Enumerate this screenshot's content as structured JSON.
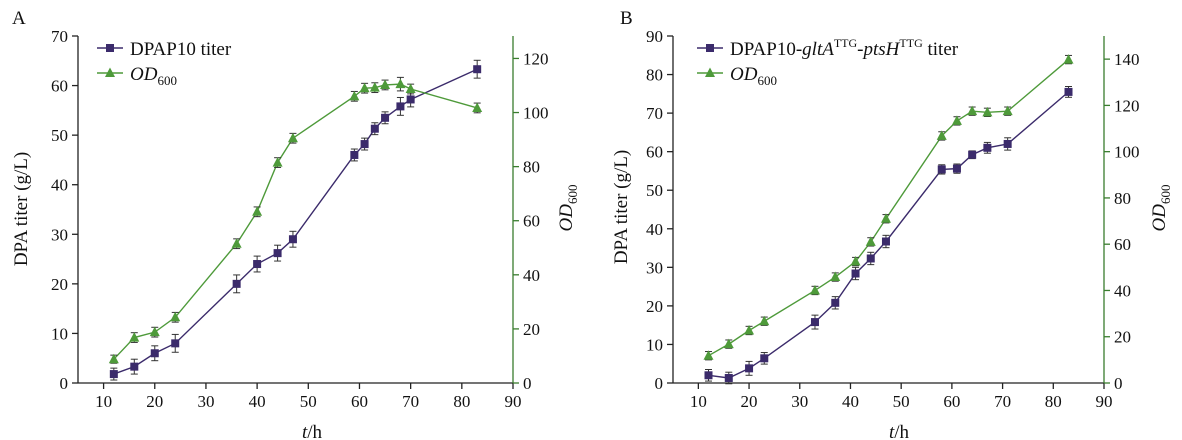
{
  "panels": [
    {
      "panel_label": "A",
      "xlabel": {
        "italic": "t",
        "rest": "/h"
      },
      "ylabel_left": "DPA titer (g/L)",
      "ylabel_right": {
        "italic": "OD",
        "sub": "600"
      },
      "legend": [
        {
          "parts": [
            {
              "text": "DPAP10 titer"
            }
          ]
        },
        {
          "parts": [
            {
              "text": "OD",
              "style": "italic"
            },
            {
              "text": "600",
              "style": "sub"
            }
          ]
        }
      ],
      "x_ticks": [
        "10",
        "20",
        "30",
        "40",
        "50",
        "60",
        "70",
        "80",
        "90"
      ],
      "yl_ticks": [
        "0",
        "10",
        "20",
        "30",
        "40",
        "50",
        "60",
        "70"
      ],
      "yr_ticks": [
        "0",
        "20",
        "40",
        "60",
        "80",
        "100",
        "120"
      ]
    },
    {
      "panel_label": "B",
      "xlabel": {
        "italic": "t",
        "rest": "/h"
      },
      "ylabel_left": "DPA titer (g/L)",
      "ylabel_right": {
        "italic": "OD",
        "sub": "600"
      },
      "legend": [
        {
          "parts": [
            {
              "text": "DPAP10-"
            },
            {
              "text": "gltA",
              "style": "italic"
            },
            {
              "text": "TTG",
              "style": "sup"
            },
            {
              "text": "-"
            },
            {
              "text": "ptsH",
              "style": "italic"
            },
            {
              "text": "TTG",
              "style": "sup"
            },
            {
              "text": " titer"
            }
          ]
        },
        {
          "parts": [
            {
              "text": "OD",
              "style": "italic"
            },
            {
              "text": "600",
              "style": "sub"
            }
          ]
        }
      ],
      "x_ticks": [
        "10",
        "20",
        "30",
        "40",
        "50",
        "60",
        "70",
        "80",
        "90"
      ],
      "yl_ticks": [
        "0",
        "10",
        "20",
        "30",
        "40",
        "50",
        "60",
        "70",
        "80",
        "90"
      ],
      "yr_ticks": [
        "0",
        "20",
        "40",
        "60",
        "80",
        "100",
        "120",
        "140"
      ]
    }
  ],
  "chart_data": [
    {
      "type": "line",
      "panel": "A",
      "xlim": [
        5,
        90
      ],
      "ylim_left": [
        0,
        70
      ],
      "ylim_right": [
        0,
        128.3
      ],
      "grid": false,
      "legend_position": "top-left",
      "series": [
        {
          "name": "DPAP10 titer",
          "axis": "left",
          "color": "#3b2b6b",
          "marker": "square",
          "x": [
            12,
            16,
            20,
            24,
            36,
            40,
            44,
            47,
            59,
            61,
            63,
            65,
            68,
            70,
            83
          ],
          "y": [
            1.8,
            3.3,
            6.0,
            8.0,
            20.0,
            24.0,
            26.2,
            29.0,
            46.0,
            48.2,
            51.3,
            53.5,
            55.8,
            57.2,
            63.3
          ],
          "err": [
            1.2,
            1.5,
            1.5,
            1.8,
            1.8,
            1.6,
            1.6,
            1.6,
            1.2,
            1.2,
            1.2,
            1.2,
            1.8,
            1.5,
            1.8
          ]
        },
        {
          "name": "OD600",
          "axis": "right",
          "color": "#4e9a3a",
          "marker": "triangle",
          "x": [
            12,
            16,
            20,
            24,
            36,
            40,
            44,
            47,
            59,
            61,
            63,
            65,
            68,
            70,
            83
          ],
          "y": [
            8.8,
            16.8,
            18.8,
            24.3,
            51.5,
            63.3,
            81.5,
            90.5,
            106.0,
            109.0,
            109.2,
            110.2,
            110.5,
            108.7,
            101.7
          ],
          "err": [
            1.5,
            1.8,
            1.8,
            1.8,
            1.8,
            1.8,
            1.8,
            1.8,
            1.8,
            1.8,
            1.8,
            1.8,
            2.5,
            1.8,
            1.8
          ]
        }
      ]
    },
    {
      "type": "line",
      "panel": "B",
      "xlim": [
        5,
        90
      ],
      "ylim_left": [
        0,
        90
      ],
      "ylim_right": [
        0,
        150
      ],
      "grid": false,
      "legend_position": "top-left",
      "series": [
        {
          "name": "DPAP10-gltATTG-ptsHTTG titer",
          "axis": "left",
          "color": "#3b2b6b",
          "marker": "square",
          "x": [
            12,
            16,
            20,
            23,
            33,
            37,
            41,
            44,
            47,
            58,
            61,
            64,
            67,
            71,
            83
          ],
          "y": [
            2.0,
            1.3,
            3.8,
            6.4,
            15.8,
            20.8,
            28.4,
            32.3,
            36.7,
            55.4,
            55.6,
            59.2,
            61.0,
            62.0,
            75.5
          ],
          "err": [
            1.5,
            1.5,
            1.8,
            1.5,
            1.8,
            1.6,
            1.6,
            1.6,
            1.6,
            1.2,
            1.2,
            1.0,
            1.4,
            1.6,
            1.4
          ]
        },
        {
          "name": "OD600",
          "axis": "right",
          "color": "#4e9a3a",
          "marker": "triangle",
          "x": [
            12,
            16,
            20,
            23,
            33,
            37,
            41,
            44,
            47,
            58,
            61,
            64,
            67,
            71,
            83
          ],
          "y": [
            11.8,
            16.8,
            22.7,
            26.7,
            40.0,
            45.8,
            52.5,
            61.0,
            71.0,
            106.8,
            113.3,
            117.5,
            117.0,
            117.5,
            139.8
          ],
          "err": [
            1.8,
            1.8,
            1.8,
            1.8,
            1.8,
            1.8,
            1.8,
            1.8,
            1.8,
            1.8,
            1.8,
            1.8,
            1.8,
            1.8,
            1.8
          ]
        }
      ]
    }
  ]
}
